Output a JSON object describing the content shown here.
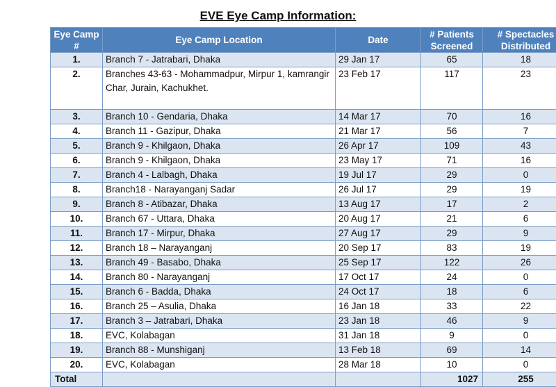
{
  "title": "EVE Eye Camp Information:",
  "columns": {
    "camp": "Eye Camp #",
    "location": "Eye Camp Location",
    "date": "Date",
    "patients": "# Patients Screened",
    "spectacles": "# Spectacles Distributed"
  },
  "rows": [
    {
      "num": "1.",
      "location": "Branch 7 - Jatrabari, Dhaka",
      "date": "29 Jan 17",
      "patients": "65",
      "spectacles": "18"
    },
    {
      "num": "2.",
      "location": "Branches 43-63 - Mohammadpur, Mirpur 1, kamrangir Char, Jurain, Kachukhet.",
      "date": "23 Feb 17",
      "patients": "117",
      "spectacles": "23"
    },
    {
      "num": "3.",
      "location": "Branch 10 - Gendaria, Dhaka",
      "date": "14 Mar 17",
      "patients": "70",
      "spectacles": "16"
    },
    {
      "num": "4.",
      "location": "Branch 11 - Gazipur, Dhaka",
      "date": "21 Mar 17",
      "patients": "56",
      "spectacles": "7"
    },
    {
      "num": "5.",
      "location": "Branch 9 - Khilgaon, Dhaka",
      "date": "26 Apr 17",
      "patients": "109",
      "spectacles": "43"
    },
    {
      "num": "6.",
      "location": "Branch 9 - Khilgaon, Dhaka",
      "date": "23 May 17",
      "patients": "71",
      "spectacles": "16"
    },
    {
      "num": "7.",
      "location": "Branch 4 - Lalbagh, Dhaka",
      "date": "19 Jul 17",
      "patients": "29",
      "spectacles": "0"
    },
    {
      "num": "8.",
      "location": "Branch18 - Narayanganj Sadar",
      "date": "26 Jul 17",
      "patients": "29",
      "spectacles": "19"
    },
    {
      "num": "9.",
      "location": "Branch 8 - Atibazar, Dhaka",
      "date": "13 Aug 17",
      "patients": "17",
      "spectacles": "2"
    },
    {
      "num": "10.",
      "location": "Branch 67 - Uttara, Dhaka",
      "date": "20 Aug 17",
      "patients": "21",
      "spectacles": "6"
    },
    {
      "num": "11.",
      "location": "Branch 17 - Mirpur, Dhaka",
      "date": "27 Aug 17",
      "patients": "29",
      "spectacles": "9"
    },
    {
      "num": "12.",
      "location": "Branch 18 – Narayanganj",
      "date": "20 Sep 17",
      "patients": "83",
      "spectacles": "19"
    },
    {
      "num": "13.",
      "location": "Branch 49 - Basabo, Dhaka",
      "date": "25 Sep 17",
      "patients": "122",
      "spectacles": "26"
    },
    {
      "num": "14.",
      "location": "Branch 80 -  Narayanganj",
      "date": "17 Oct 17",
      "patients": "24",
      "spectacles": "0"
    },
    {
      "num": "15.",
      "location": "Branch 6 - Badda, Dhaka",
      "date": "24 Oct 17",
      "patients": "18",
      "spectacles": "6"
    },
    {
      "num": "16.",
      "location": "Branch 25 – Asulia, Dhaka",
      "date": "16 Jan 18",
      "patients": "33",
      "spectacles": "22"
    },
    {
      "num": "17.",
      "location": "Branch 3 – Jatrabari, Dhaka",
      "date": "23 Jan 18",
      "patients": "46",
      "spectacles": "9"
    },
    {
      "num": "18.",
      "location": "EVC, Kolabagan",
      "date": "31 Jan 18",
      "patients": "9",
      "spectacles": "0"
    },
    {
      "num": "19.",
      "location": "Branch 88 - Munshiganj",
      "date": "13 Feb 18",
      "patients": "69",
      "spectacles": "14"
    },
    {
      "num": "20.",
      "location": "EVC, Kolabagan",
      "date": "28 Mar 18",
      "patients": "10",
      "spectacles": "0"
    }
  ],
  "total": {
    "label": "Total",
    "patients": "1027",
    "spectacles": "255"
  }
}
